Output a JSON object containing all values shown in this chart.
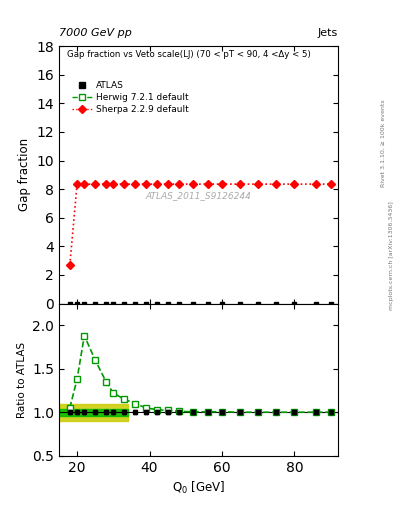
{
  "title_left": "7000 GeV pp",
  "title_right": "Jets",
  "right_label_top": "Rivet 3.1.10, ≥ 100k events",
  "right_label_bot": "mcplots.cern.ch [arXiv:1306.3436]",
  "main_title": "Gap fraction vs Veto scale(LJ) (70 < pT < 90, 4 <Δy < 5)",
  "watermark": "ATLAS_2011_S9126244",
  "xlabel": "Q$_0$ [GeV]",
  "ylabel_main": "Gap fraction",
  "ylabel_ratio": "Ratio to ATLAS",
  "xlim": [
    15,
    92
  ],
  "ylim_main": [
    0,
    18
  ],
  "ylim_ratio": [
    0.5,
    2.25
  ],
  "atlas_x": [
    18,
    20,
    22,
    25,
    28,
    30,
    33,
    36,
    39,
    42,
    45,
    48,
    52,
    56,
    60,
    65,
    70,
    75,
    80,
    86,
    90
  ],
  "atlas_y": [
    0.0,
    0.0,
    0.0,
    0.0,
    0.0,
    0.0,
    0.0,
    0.0,
    0.0,
    0.0,
    0.0,
    0.0,
    0.0,
    0.0,
    0.0,
    0.0,
    0.0,
    0.0,
    0.0,
    0.0,
    0.0
  ],
  "atlas_yerr_main": 0.02,
  "herwig_x": [
    18,
    20,
    22,
    25,
    28,
    30,
    33,
    36,
    39,
    42,
    45,
    48,
    52,
    56,
    60,
    65,
    70,
    75,
    80,
    86,
    90
  ],
  "herwig_ratio": [
    1.05,
    1.38,
    1.88,
    1.6,
    1.35,
    1.22,
    1.15,
    1.1,
    1.05,
    1.03,
    1.02,
    1.01,
    1.005,
    1.005,
    1.005,
    1.0,
    1.0,
    1.0,
    1.0,
    1.0,
    1.0
  ],
  "sherpa_x": [
    18,
    20,
    22,
    25,
    28,
    30,
    33,
    36,
    39,
    42,
    45,
    48,
    52,
    56,
    60,
    65,
    70,
    75,
    80,
    86,
    90
  ],
  "sherpa_y": [
    2.7,
    8.35,
    8.35,
    8.35,
    8.35,
    8.35,
    8.35,
    8.35,
    8.35,
    8.35,
    8.35,
    8.35,
    8.35,
    8.35,
    8.35,
    8.35,
    8.35,
    8.35,
    8.35,
    8.35,
    8.35
  ],
  "atlas_color": "#000000",
  "herwig_color": "#009900",
  "sherpa_color": "#ff0000",
  "atlas_band_inner_color": "#00bb00",
  "atlas_band_outer_color": "#cccc00",
  "atlas_band_inner": 0.04,
  "atlas_band_outer": 0.1,
  "band_xmax": 34,
  "yticks_main": [
    0,
    2,
    4,
    6,
    8,
    10,
    12,
    14,
    16,
    18
  ],
  "yticks_ratio": [
    0.5,
    1.0,
    1.5,
    2.0
  ],
  "xticks": [
    20,
    40,
    60,
    80
  ]
}
